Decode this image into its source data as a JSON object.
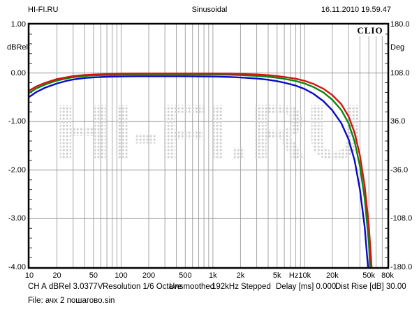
{
  "header": {
    "left": "HI-FI.RU",
    "center": "Sinusoidal",
    "right": "16.11.2010 19.59.47"
  },
  "chart_data": {
    "type": "line",
    "title": "Sinusoidal",
    "logo": "CLIO",
    "watermark": "HI-FI.RU",
    "x_axis": {
      "unit": "Hz",
      "scale": "log",
      "min": 10,
      "max": 80000,
      "tick_labels": [
        "10",
        "20",
        "50",
        "100",
        "200",
        "500",
        "1k",
        "2k",
        "5k",
        "10k",
        "20k",
        "50k",
        "80k"
      ],
      "tick_values": [
        10,
        20,
        50,
        100,
        200,
        500,
        1000,
        2000,
        5000,
        10000,
        20000,
        50000,
        80000
      ],
      "grid": true
    },
    "y_left": {
      "unit": "dBRel",
      "min": -4.0,
      "max": 1.0,
      "tick_labels": [
        "1.00",
        "0.00",
        "-1.00",
        "-2.00",
        "-3.00",
        "-4.00"
      ],
      "tick_values": [
        1,
        0,
        -1,
        -2,
        -3,
        -4
      ],
      "grid": true
    },
    "y_right": {
      "unit": "Deg",
      "min": -180.0,
      "max": 180.0,
      "tick_labels": [
        "180.0",
        "108.0",
        "36.0",
        "-36.0",
        "-108.0",
        "-180.0"
      ],
      "tick_values": [
        180,
        108,
        36,
        -36,
        -108,
        -180
      ]
    },
    "series": [
      {
        "name": "blue-curve",
        "color": "#0a0ac8",
        "points": [
          [
            10,
            -0.49
          ],
          [
            12,
            -0.39
          ],
          [
            15,
            -0.3
          ],
          [
            20,
            -0.215
          ],
          [
            25,
            -0.165
          ],
          [
            30,
            -0.133
          ],
          [
            40,
            -0.103
          ],
          [
            50,
            -0.09
          ],
          [
            70,
            -0.078
          ],
          [
            100,
            -0.072
          ],
          [
            150,
            -0.068
          ],
          [
            200,
            -0.068
          ],
          [
            300,
            -0.068
          ],
          [
            500,
            -0.068
          ],
          [
            700,
            -0.07
          ],
          [
            1000,
            -0.073
          ],
          [
            1500,
            -0.082
          ],
          [
            2000,
            -0.093
          ],
          [
            3000,
            -0.115
          ],
          [
            4000,
            -0.14
          ],
          [
            5000,
            -0.168
          ],
          [
            6000,
            -0.2
          ],
          [
            8000,
            -0.26
          ],
          [
            10000,
            -0.33
          ],
          [
            12500,
            -0.43
          ],
          [
            16000,
            -0.58
          ],
          [
            20000,
            -0.77
          ],
          [
            25000,
            -1.03
          ],
          [
            30000,
            -1.36
          ],
          [
            35000,
            -1.8
          ],
          [
            40000,
            -2.4
          ],
          [
            45000,
            -3.17
          ],
          [
            49000,
            -4.0
          ],
          [
            51000,
            -4.6
          ]
        ]
      },
      {
        "name": "green-curve",
        "color": "#0c860c",
        "points": [
          [
            10,
            -0.41
          ],
          [
            12,
            -0.315
          ],
          [
            15,
            -0.235
          ],
          [
            20,
            -0.155
          ],
          [
            25,
            -0.115
          ],
          [
            30,
            -0.088
          ],
          [
            40,
            -0.062
          ],
          [
            50,
            -0.05
          ],
          [
            70,
            -0.04
          ],
          [
            100,
            -0.033
          ],
          [
            150,
            -0.03
          ],
          [
            200,
            -0.03
          ],
          [
            300,
            -0.03
          ],
          [
            500,
            -0.03
          ],
          [
            700,
            -0.03
          ],
          [
            1000,
            -0.032
          ],
          [
            1500,
            -0.038
          ],
          [
            2000,
            -0.045
          ],
          [
            3000,
            -0.06
          ],
          [
            4000,
            -0.078
          ],
          [
            5000,
            -0.098
          ],
          [
            6000,
            -0.12
          ],
          [
            8000,
            -0.165
          ],
          [
            10000,
            -0.215
          ],
          [
            12500,
            -0.29
          ],
          [
            16000,
            -0.4
          ],
          [
            20000,
            -0.55
          ],
          [
            25000,
            -0.76
          ],
          [
            30000,
            -1.03
          ],
          [
            35000,
            -1.41
          ],
          [
            40000,
            -1.92
          ],
          [
            45000,
            -2.58
          ],
          [
            50000,
            -3.5
          ],
          [
            52000,
            -4.1
          ],
          [
            54000,
            -4.6
          ]
        ]
      },
      {
        "name": "red-curve",
        "color": "#d41414",
        "points": [
          [
            10,
            -0.36
          ],
          [
            12,
            -0.275
          ],
          [
            15,
            -0.2
          ],
          [
            20,
            -0.125
          ],
          [
            25,
            -0.09
          ],
          [
            30,
            -0.065
          ],
          [
            40,
            -0.042
          ],
          [
            50,
            -0.032
          ],
          [
            70,
            -0.022
          ],
          [
            100,
            -0.015
          ],
          [
            150,
            -0.01
          ],
          [
            200,
            -0.01
          ],
          [
            300,
            -0.01
          ],
          [
            500,
            -0.01
          ],
          [
            700,
            -0.01
          ],
          [
            1000,
            -0.01
          ],
          [
            1500,
            -0.013
          ],
          [
            2000,
            -0.018
          ],
          [
            3000,
            -0.03
          ],
          [
            4000,
            -0.045
          ],
          [
            5000,
            -0.062
          ],
          [
            6000,
            -0.082
          ],
          [
            8000,
            -0.118
          ],
          [
            10000,
            -0.162
          ],
          [
            12500,
            -0.225
          ],
          [
            16000,
            -0.325
          ],
          [
            20000,
            -0.455
          ],
          [
            25000,
            -0.64
          ],
          [
            30000,
            -0.89
          ],
          [
            35000,
            -1.23
          ],
          [
            40000,
            -1.7
          ],
          [
            45000,
            -2.32
          ],
          [
            50000,
            -3.15
          ],
          [
            53000,
            -3.85
          ],
          [
            56000,
            -4.6
          ]
        ]
      }
    ]
  },
  "status_bar": {
    "items": [
      "CH A",
      "dBRel 3.0377V",
      "Resolution 1/6 Octave",
      "Unsmoothed",
      "192kHz",
      "Stepped",
      "Delay [ms] 0.000",
      "Dist Rise [dB] 30.00"
    ]
  },
  "file_line": "File: ачх 2 пошагово.sin",
  "colors": {
    "grid": "#a6a6a6",
    "frame": "#000000",
    "watermark_dots": "#d0d0d0"
  }
}
